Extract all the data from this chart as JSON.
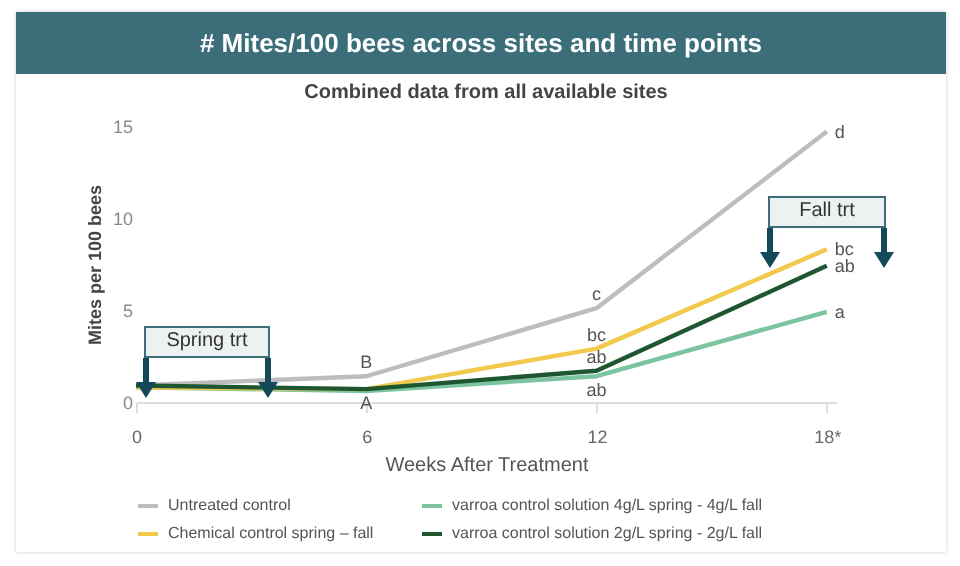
{
  "chart_data": {
    "type": "line",
    "title": "# Mites/100 bees across sites and time points",
    "subtitle": "Combined data from all available sites",
    "xlabel": "Weeks After Treatment",
    "ylabel": "Mites per 100 bees",
    "categories": [
      "0",
      "6",
      "12",
      "18*"
    ],
    "series": [
      {
        "name": "Untreated control",
        "color": "#bdbdbd",
        "values": [
          0.9,
          1.4,
          5.1,
          14.7
        ]
      },
      {
        "name": "varroa control solution 4g/L spring - 4g/L fall",
        "color": "#7cc4a0",
        "values": [
          0.8,
          0.6,
          1.4,
          4.9
        ]
      },
      {
        "name": "Chemical control spring – fall",
        "color": "#f2c94c",
        "values": [
          0.8,
          0.7,
          2.9,
          8.3
        ]
      },
      {
        "name": "varroa control solution 2g/L spring - 2g/L fall",
        "color": "#1e5631",
        "values": [
          0.9,
          0.7,
          1.7,
          7.4
        ]
      }
    ],
    "ylim": [
      0,
      15
    ],
    "yticks": [
      0,
      5,
      10,
      15
    ],
    "grid": false,
    "legend": "bottom",
    "annotations": [
      {
        "text": "B",
        "x": "6",
        "y": 1.4
      },
      {
        "text": "A",
        "x": "6",
        "y": 0.7
      },
      {
        "text": "c",
        "x": "12",
        "y": 5.1
      },
      {
        "text": "bc",
        "x": "12",
        "y": 2.9
      },
      {
        "text": "ab",
        "x": "12",
        "y": 1.7
      },
      {
        "text": "ab",
        "x": "12",
        "y": 1.4
      },
      {
        "text": "d",
        "x": "18*",
        "y": 14.7
      },
      {
        "text": "bc",
        "x": "18*",
        "y": 8.3
      },
      {
        "text": "ab",
        "x": "18*",
        "y": 7.4
      },
      {
        "text": "a",
        "x": "18*",
        "y": 4.9
      },
      "Spring trt",
      "Fall trt"
    ]
  }
}
